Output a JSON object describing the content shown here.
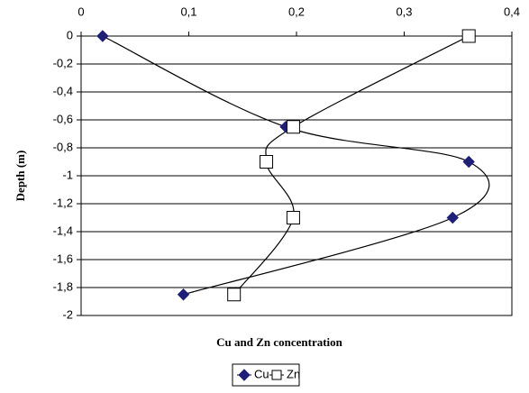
{
  "chart_data": {
    "type": "scatter-line",
    "x_label": "Cu and Zn concentration",
    "y_label": "Depth (m)",
    "xlim": [
      0,
      0.4
    ],
    "xticks": [
      0,
      {
        "value": 0.1,
        "label": "0,1"
      },
      {
        "value": 0.2,
        "label": "0,2"
      },
      {
        "value": 0.3,
        "label": "0,3"
      },
      {
        "value": 0.4,
        "label": "0,4"
      }
    ],
    "ylim": [
      -2,
      0
    ],
    "yticks": [
      0,
      {
        "value": -0.2,
        "label": "-0,2"
      },
      {
        "value": -0.4,
        "label": "-0,4"
      },
      {
        "value": -0.6,
        "label": "-0,6"
      },
      {
        "value": -0.8,
        "label": "-0,8"
      },
      -1,
      {
        "value": -1.2,
        "label": "-1,2"
      },
      {
        "value": -1.4,
        "label": "-1,4"
      },
      {
        "value": -1.6,
        "label": "-1,6"
      },
      {
        "value": -1.8,
        "label": "-1,8"
      },
      -2
    ],
    "grid": true,
    "legend": "bottom",
    "series": [
      {
        "name": "Cu",
        "color": "#1f1f7a",
        "marker": "diamond",
        "x": [
          0.02,
          0.19,
          0.36,
          0.345,
          0.095
        ],
        "values": [
          0,
          -0.65,
          -0.9,
          -1.3,
          -1.85
        ]
      },
      {
        "name": "Zn",
        "color": "#ffffff",
        "marker": "square",
        "x": [
          0.36,
          0.197,
          0.172,
          0.197,
          0.142
        ],
        "values": [
          0,
          -0.65,
          -0.9,
          -1.3,
          -1.85
        ]
      }
    ]
  }
}
